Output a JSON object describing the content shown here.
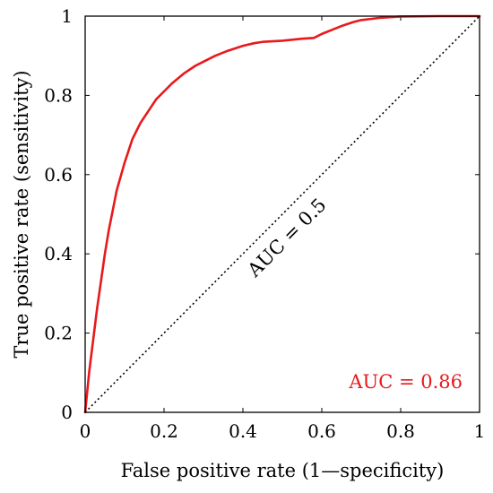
{
  "chart_data": {
    "type": "line",
    "xlabel": "False positive rate (1—specificity)",
    "ylabel": "True positive rate (sensitivity)",
    "xlim": [
      0,
      1
    ],
    "ylim": [
      0,
      1
    ],
    "x_ticks": [
      0,
      0.2,
      0.4,
      0.6,
      0.8,
      1
    ],
    "y_ticks": [
      0,
      0.2,
      0.4,
      0.6,
      0.8,
      1
    ],
    "x_tick_labels": [
      "0",
      "0.2",
      "0.4",
      "0.6",
      "0.8",
      "1"
    ],
    "y_tick_labels": [
      "0",
      "0.2",
      "0.4",
      "0.6",
      "0.8",
      "1"
    ],
    "grid": false,
    "series": [
      {
        "color": "#e8191c",
        "style": "solid",
        "x": [
          0,
          0.005,
          0.01,
          0.02,
          0.03,
          0.04,
          0.05,
          0.06,
          0.07,
          0.08,
          0.1,
          0.12,
          0.14,
          0.16,
          0.18,
          0.2,
          0.22,
          0.25,
          0.28,
          0.3,
          0.33,
          0.36,
          0.4,
          0.43,
          0.45,
          0.5,
          0.55,
          0.58,
          0.6,
          0.63,
          0.65,
          0.68,
          0.7,
          0.75,
          0.8,
          0.9,
          1.0
        ],
        "y": [
          0,
          0.05,
          0.1,
          0.18,
          0.26,
          0.33,
          0.4,
          0.46,
          0.51,
          0.56,
          0.63,
          0.69,
          0.73,
          0.76,
          0.79,
          0.81,
          0.83,
          0.855,
          0.875,
          0.885,
          0.9,
          0.912,
          0.925,
          0.932,
          0.935,
          0.938,
          0.943,
          0.945,
          0.955,
          0.967,
          0.975,
          0.985,
          0.99,
          0.996,
          0.999,
          1.0,
          1.0
        ]
      },
      {
        "color": "#000000",
        "style": "dotted",
        "x": [
          0,
          1
        ],
        "y": [
          0,
          1
        ]
      }
    ],
    "annotations": [
      {
        "text": "AUC = 0.5",
        "color": "#000000"
      },
      {
        "text": "AUC = 0.86",
        "color": "#e8191c"
      }
    ]
  }
}
